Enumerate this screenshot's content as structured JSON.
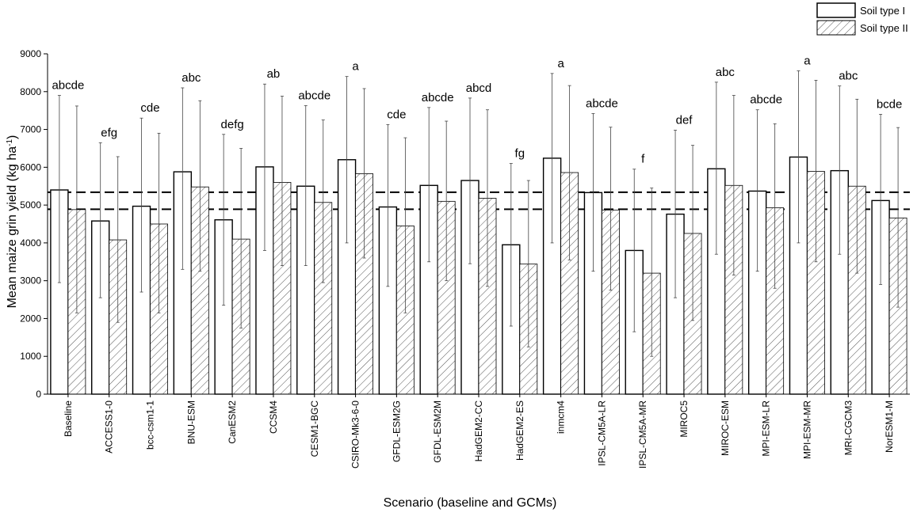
{
  "chart_data": {
    "type": "bar",
    "xlabel": "Scenario (baseline and GCMs)",
    "ylabel_main": "Mean maize grin yield (kg ha",
    "ylabel_sup": "-1",
    "ylabel_close": ")",
    "ylim": [
      0,
      9000
    ],
    "yticks": [
      0,
      1000,
      2000,
      3000,
      4000,
      5000,
      6000,
      7000,
      8000,
      9000
    ],
    "legend_position": "top-right",
    "reference_lines": [
      5340,
      4890
    ],
    "categories": [
      "Baseline",
      "ACCESS1-0",
      "bcc-csm1-1",
      "BNU-ESM",
      "CanESM2",
      "CCSM4",
      "CESM1-BGC",
      "CSIRO-Mk3-6-0",
      "GFDL-ESM2G",
      "GFDL-ESM2M",
      "HadGEM2-CC",
      "HadGEM2-ES",
      "inmcm4",
      "IPSL-CM5A-LR",
      "IPSL-CM5A-MR",
      "MIROC5",
      "MIROC-ESM",
      "MPI-ESM-LR",
      "MPI-ESM-MR",
      "MRI-CGCM3",
      "NorESM1-M"
    ],
    "letters": [
      "abcde",
      "efg",
      "cde",
      "abc",
      "defg",
      "ab",
      "abcde",
      "a",
      "cde",
      "abcde",
      "abcd",
      "fg",
      "a",
      "abcde",
      "f",
      "def",
      "abc",
      "abcde",
      "a",
      "abc",
      "bcde"
    ],
    "series": [
      {
        "name": "Soil type I",
        "fill": "white",
        "values": [
          5400,
          4580,
          4970,
          5880,
          4610,
          6010,
          5500,
          6200,
          4950,
          5520,
          5650,
          3950,
          6240,
          5330,
          3800,
          4760,
          5960,
          5370,
          6270,
          5910,
          5120
        ],
        "err_low": [
          2950,
          2550,
          2700,
          3300,
          2350,
          3800,
          3400,
          4000,
          2850,
          3500,
          3450,
          1800,
          4000,
          3250,
          1650,
          2550,
          3700,
          3250,
          4000,
          3700,
          2900
        ],
        "err_high": [
          7900,
          6650,
          7300,
          8100,
          6870,
          8200,
          7630,
          8400,
          7130,
          7580,
          7830,
          6100,
          8480,
          7420,
          5950,
          6980,
          8250,
          7520,
          8550,
          8150,
          7400
        ]
      },
      {
        "name": "Soil type II",
        "fill": "hatch",
        "values": [
          4880,
          4080,
          4500,
          5480,
          4100,
          5600,
          5070,
          5830,
          4450,
          5100,
          5180,
          3440,
          5860,
          4870,
          3200,
          4250,
          5520,
          4930,
          5890,
          5500,
          4660
        ],
        "err_low": [
          2150,
          1900,
          2150,
          3250,
          1750,
          3400,
          2950,
          3600,
          2150,
          3000,
          2850,
          1250,
          3550,
          2750,
          1000,
          1950,
          3150,
          2800,
          3500,
          3200,
          2300
        ],
        "err_high": [
          7620,
          6280,
          6900,
          7760,
          6500,
          7880,
          7250,
          8080,
          6780,
          7220,
          7520,
          5650,
          8160,
          7060,
          5450,
          6580,
          7900,
          7150,
          8300,
          7800,
          7050
        ]
      }
    ]
  }
}
